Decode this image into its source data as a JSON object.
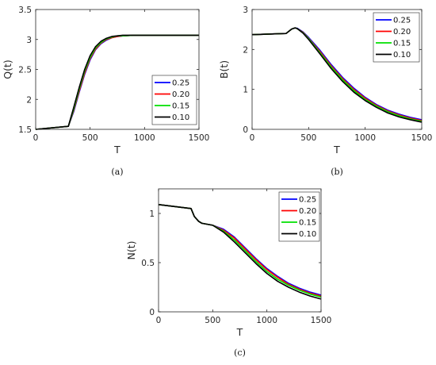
{
  "chart_data": [
    {
      "type": "line",
      "caption": "(a)",
      "xlabel": "T",
      "ylabel": "Q(t)",
      "xlim": [
        0,
        1500
      ],
      "ylim": [
        1.5,
        3.5
      ],
      "xticks": [
        0,
        500,
        1000,
        1500
      ],
      "yticks": [
        1.5,
        2,
        2.5,
        3,
        3.5
      ],
      "ytick_labels": [
        "1.5",
        "2",
        "2.5",
        "3",
        "3.5"
      ],
      "grid": false,
      "legend_position": "right",
      "series": [
        {
          "name": "0.25",
          "color": "#0000ff",
          "x": [
            0,
            300,
            350,
            400,
            450,
            500,
            550,
            600,
            650,
            700,
            750,
            800,
            900,
            1000,
            1200,
            1500
          ],
          "y": [
            1.5,
            1.55,
            1.8,
            2.12,
            2.42,
            2.66,
            2.83,
            2.93,
            2.99,
            3.03,
            3.05,
            3.06,
            3.07,
            3.07,
            3.07,
            3.07
          ]
        },
        {
          "name": "0.20",
          "color": "#ff0000",
          "x": [
            0,
            300,
            350,
            400,
            450,
            500,
            550,
            600,
            650,
            700,
            750,
            800,
            900,
            1000,
            1200,
            1500
          ],
          "y": [
            1.5,
            1.55,
            1.82,
            2.14,
            2.44,
            2.68,
            2.84,
            2.94,
            3.0,
            3.03,
            3.05,
            3.06,
            3.07,
            3.07,
            3.07,
            3.07
          ]
        },
        {
          "name": "0.15",
          "color": "#00e000",
          "x": [
            0,
            300,
            350,
            400,
            450,
            500,
            550,
            600,
            650,
            700,
            750,
            800,
            900,
            1000,
            1200,
            1500
          ],
          "y": [
            1.5,
            1.55,
            1.84,
            2.17,
            2.47,
            2.7,
            2.86,
            2.95,
            3.01,
            3.04,
            3.06,
            3.06,
            3.07,
            3.07,
            3.07,
            3.07
          ]
        },
        {
          "name": "0.10",
          "color": "#000000",
          "x": [
            0,
            300,
            350,
            400,
            450,
            500,
            550,
            600,
            650,
            700,
            750,
            800,
            900,
            1000,
            1200,
            1500
          ],
          "y": [
            1.5,
            1.55,
            1.87,
            2.2,
            2.5,
            2.73,
            2.88,
            2.97,
            3.02,
            3.05,
            3.06,
            3.07,
            3.07,
            3.07,
            3.07,
            3.07
          ]
        }
      ]
    },
    {
      "type": "line",
      "caption": "(b)",
      "xlabel": "T",
      "ylabel": "B(t)",
      "xlim": [
        0,
        1500
      ],
      "ylim": [
        0,
        3
      ],
      "xticks": [
        0,
        500,
        1000,
        1500
      ],
      "yticks": [
        0,
        1,
        2,
        3
      ],
      "ytick_labels": [
        "0",
        "1",
        "2",
        "3"
      ],
      "grid": false,
      "legend_position": "top-right",
      "series": [
        {
          "name": "0.25",
          "color": "#0000ff",
          "x": [
            0,
            300,
            350,
            380,
            400,
            450,
            500,
            600,
            700,
            800,
            900,
            1000,
            1100,
            1200,
            1300,
            1400,
            1500
          ],
          "y": [
            2.37,
            2.4,
            2.51,
            2.54,
            2.53,
            2.44,
            2.3,
            1.98,
            1.62,
            1.3,
            1.03,
            0.8,
            0.62,
            0.48,
            0.38,
            0.3,
            0.24
          ]
        },
        {
          "name": "0.20",
          "color": "#ff0000",
          "x": [
            0,
            300,
            350,
            380,
            400,
            450,
            500,
            600,
            700,
            800,
            900,
            1000,
            1100,
            1200,
            1300,
            1400,
            1500
          ],
          "y": [
            2.37,
            2.4,
            2.51,
            2.54,
            2.52,
            2.43,
            2.28,
            1.95,
            1.59,
            1.27,
            1.0,
            0.78,
            0.6,
            0.46,
            0.36,
            0.28,
            0.22
          ]
        },
        {
          "name": "0.15",
          "color": "#00e000",
          "x": [
            0,
            300,
            350,
            380,
            400,
            450,
            500,
            600,
            700,
            800,
            900,
            1000,
            1100,
            1200,
            1300,
            1400,
            1500
          ],
          "y": [
            2.37,
            2.4,
            2.51,
            2.54,
            2.52,
            2.42,
            2.27,
            1.92,
            1.56,
            1.24,
            0.97,
            0.75,
            0.58,
            0.44,
            0.34,
            0.26,
            0.2
          ]
        },
        {
          "name": "0.10",
          "color": "#000000",
          "x": [
            0,
            300,
            350,
            380,
            400,
            450,
            500,
            600,
            700,
            800,
            900,
            1000,
            1100,
            1200,
            1300,
            1400,
            1500
          ],
          "y": [
            2.37,
            2.4,
            2.51,
            2.54,
            2.52,
            2.41,
            2.25,
            1.89,
            1.52,
            1.2,
            0.93,
            0.72,
            0.55,
            0.41,
            0.31,
            0.24,
            0.18
          ]
        }
      ]
    },
    {
      "type": "line",
      "caption": "(c)",
      "xlabel": "T",
      "ylabel": "N(t)",
      "xlim": [
        0,
        1500
      ],
      "ylim": [
        0,
        1.25
      ],
      "xticks": [
        0,
        500,
        1000,
        1500
      ],
      "yticks": [
        0,
        0.5,
        1
      ],
      "ytick_labels": [
        "0",
        "0.5",
        "1"
      ],
      "grid": false,
      "legend_position": "top-right",
      "series": [
        {
          "name": "0.25",
          "color": "#0000ff",
          "x": [
            0,
            300,
            330,
            370,
            400,
            450,
            500,
            600,
            700,
            800,
            900,
            1000,
            1100,
            1200,
            1300,
            1400,
            1500
          ],
          "y": [
            1.09,
            1.05,
            0.97,
            0.92,
            0.9,
            0.89,
            0.88,
            0.84,
            0.76,
            0.65,
            0.54,
            0.44,
            0.36,
            0.29,
            0.24,
            0.2,
            0.17
          ]
        },
        {
          "name": "0.20",
          "color": "#ff0000",
          "x": [
            0,
            300,
            330,
            370,
            400,
            450,
            500,
            600,
            700,
            800,
            900,
            1000,
            1100,
            1200,
            1300,
            1400,
            1500
          ],
          "y": [
            1.09,
            1.05,
            0.97,
            0.92,
            0.9,
            0.89,
            0.88,
            0.83,
            0.75,
            0.64,
            0.53,
            0.43,
            0.35,
            0.28,
            0.23,
            0.19,
            0.16
          ]
        },
        {
          "name": "0.15",
          "color": "#00e000",
          "x": [
            0,
            300,
            330,
            370,
            400,
            450,
            500,
            600,
            700,
            800,
            900,
            1000,
            1100,
            1200,
            1300,
            1400,
            1500
          ],
          "y": [
            1.09,
            1.05,
            0.97,
            0.92,
            0.9,
            0.89,
            0.88,
            0.82,
            0.73,
            0.62,
            0.51,
            0.41,
            0.33,
            0.27,
            0.22,
            0.18,
            0.15
          ]
        },
        {
          "name": "0.10",
          "color": "#000000",
          "x": [
            0,
            300,
            330,
            370,
            400,
            450,
            500,
            600,
            700,
            800,
            900,
            1000,
            1100,
            1200,
            1300,
            1400,
            1500
          ],
          "y": [
            1.09,
            1.05,
            0.97,
            0.92,
            0.9,
            0.89,
            0.88,
            0.81,
            0.71,
            0.6,
            0.49,
            0.39,
            0.31,
            0.25,
            0.2,
            0.16,
            0.13
          ]
        }
      ]
    }
  ]
}
